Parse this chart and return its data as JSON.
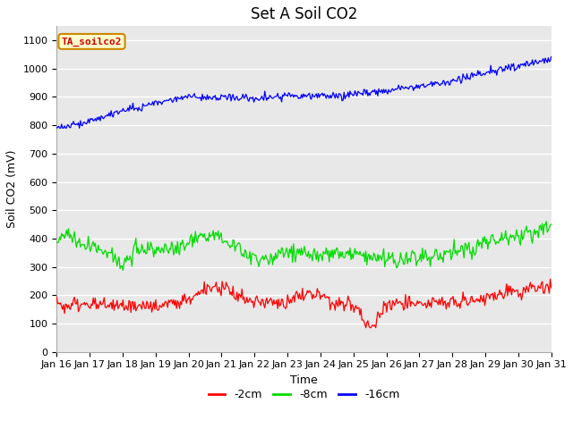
{
  "title": "Set A Soil CO2",
  "xlabel": "Time",
  "ylabel": "Soil CO2 (mV)",
  "ylim": [
    0,
    1150
  ],
  "yticks": [
    0,
    100,
    200,
    300,
    400,
    500,
    600,
    700,
    800,
    900,
    1000,
    1100
  ],
  "x_labels": [
    "Jan 16",
    "Jan 17",
    "Jan 18",
    "Jan 19",
    "Jan 20",
    "Jan 21",
    "Jan 22",
    "Jan 23",
    "Jan 24",
    "Jan 25",
    "Jan 26",
    "Jan 27",
    "Jan 28",
    "Jan 29",
    "Jan 30",
    "Jan 31"
  ],
  "line_colors": {
    "2cm": "#ff0000",
    "8cm": "#00dd00",
    "16cm": "#0000ff"
  },
  "legend_labels": [
    "-2cm",
    "-8cm",
    "-16cm"
  ],
  "annotation_text": "TA_soilco2",
  "annotation_bg": "#ffffcc",
  "annotation_border": "#cc8800",
  "plot_bg_color": "#e8e8e8",
  "fig_bg_color": "#ffffff",
  "grid_color": "#ffffff",
  "title_fontsize": 12,
  "label_fontsize": 9,
  "tick_fontsize": 8,
  "num_points": 500
}
